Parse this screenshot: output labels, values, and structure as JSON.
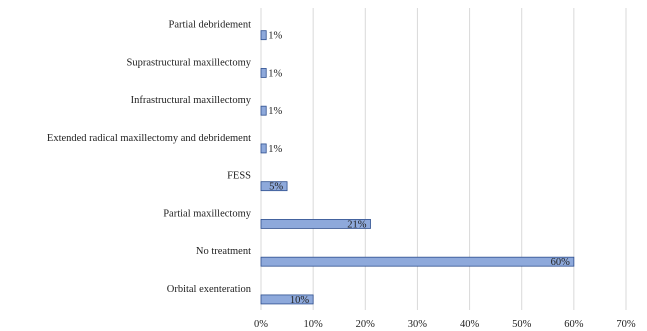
{
  "chart_data": {
    "type": "bar",
    "orientation": "horizontal",
    "categories": [
      "Partial debridement",
      "Suprastructural maxillectomy",
      "Infrastructural maxillectomy",
      "Extended radical maxillectomy and debridement",
      "FESS",
      "Partial maxillectomy",
      "No treatment",
      "Orbital exenteration"
    ],
    "values": [
      1,
      1,
      1,
      1,
      5,
      21,
      60,
      10
    ],
    "data_labels": [
      "1%",
      "1%",
      "1%",
      "1%",
      "5%",
      "21%",
      "60%",
      "10%"
    ],
    "xlim": [
      0,
      70
    ],
    "x_ticks": [
      0,
      10,
      20,
      30,
      40,
      50,
      60,
      70
    ],
    "x_tick_labels": [
      "0%",
      "10%",
      "20%",
      "30%",
      "40%",
      "50%",
      "60%",
      "70%"
    ],
    "title": "",
    "xlabel": "",
    "ylabel": "",
    "grid": "vertical",
    "legend": "none",
    "colors": {
      "bar_fill": "#8EA9DB",
      "bar_stroke": "#2F4F8F",
      "grid": "#D9D9D9"
    }
  }
}
